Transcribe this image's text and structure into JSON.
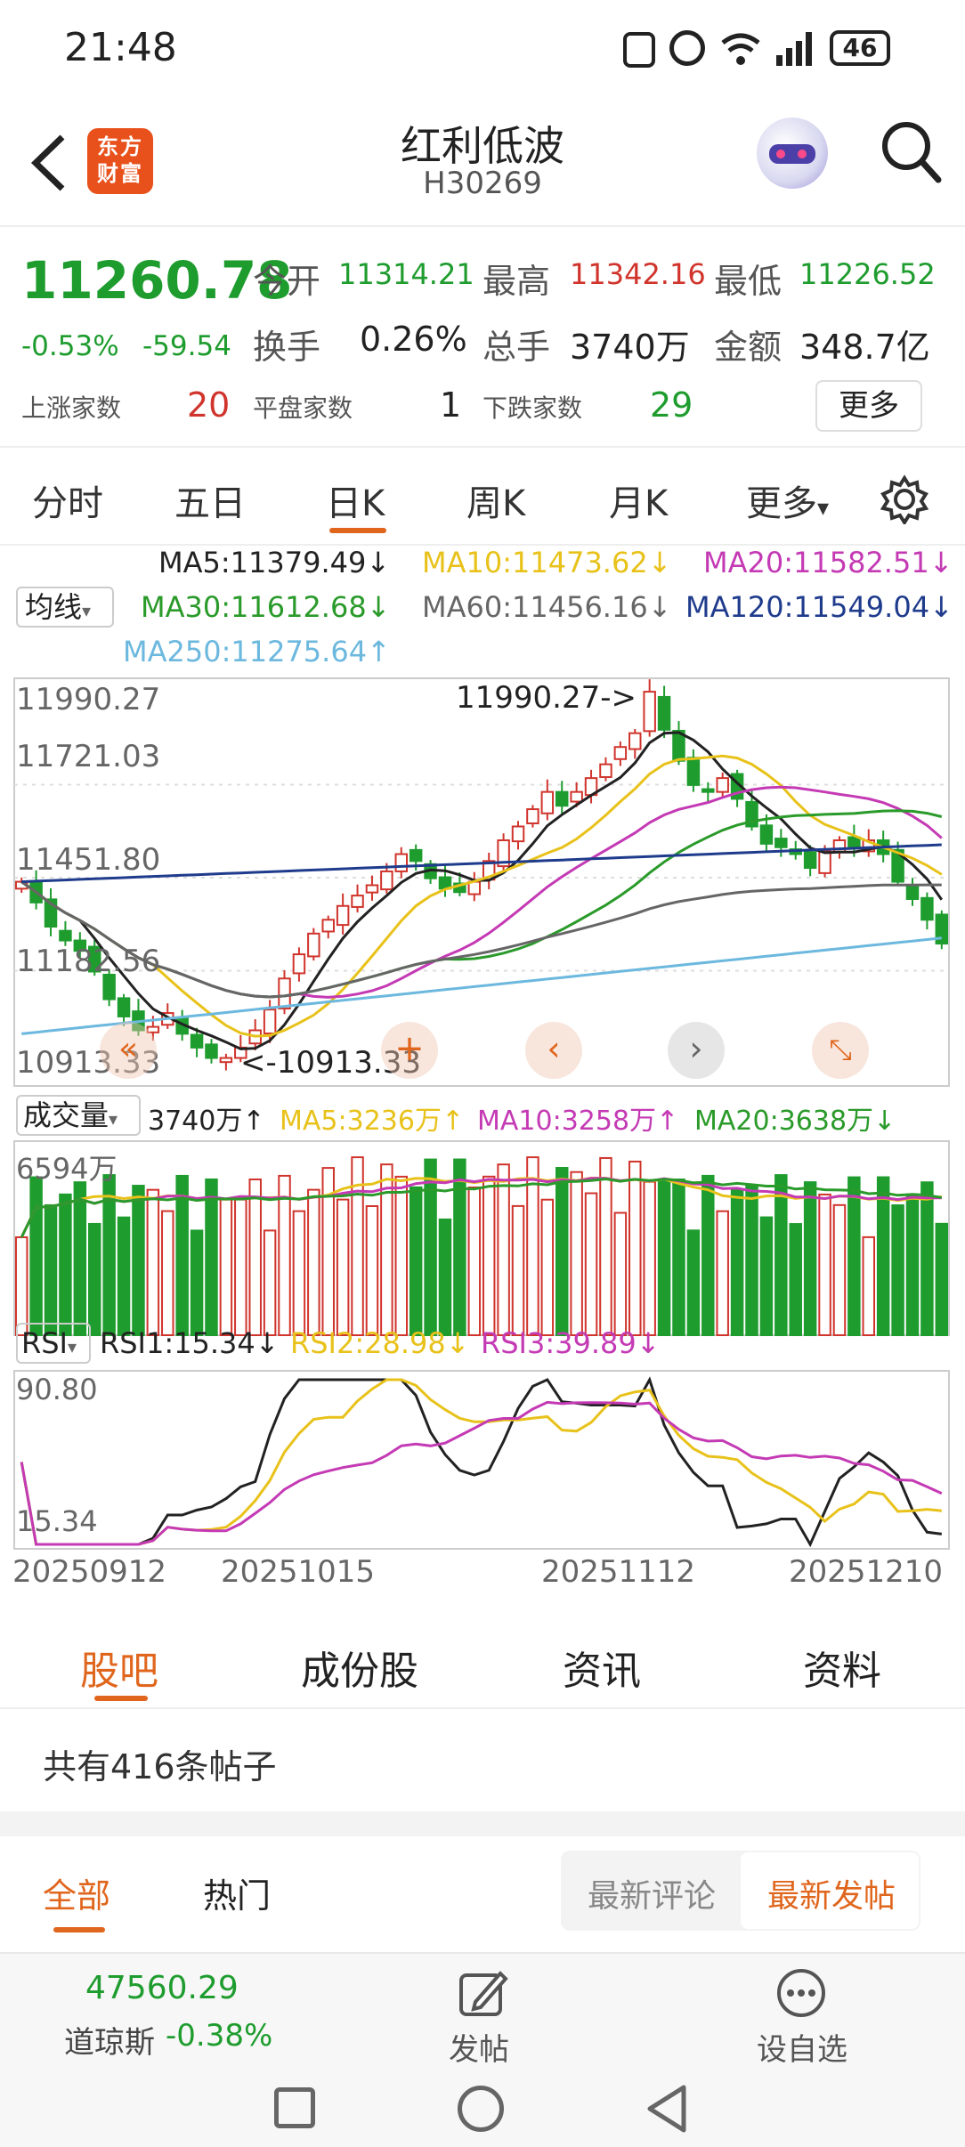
{
  "status": {
    "time": "21:48",
    "battery": "46"
  },
  "header": {
    "logo_text": "东方财富",
    "title": "红利低波",
    "code": "H30269"
  },
  "quote": {
    "price": "11260.78",
    "change_pct": "-0.53%",
    "change": "-59.54",
    "open_label": "今开",
    "open": "11314.21",
    "high_label": "最高",
    "high": "11342.16",
    "low_label": "最低",
    "low": "11226.52",
    "turnover_label": "换手",
    "turnover": "0.26%",
    "volume_label": "总手",
    "volume": "3740万",
    "amount_label": "金额",
    "amount": "348.7亿",
    "up_label": "上涨家数",
    "up": "20",
    "flat_label": "平盘家数",
    "flat": "1",
    "down_label": "下跌家数",
    "down": "29",
    "more_label": "更多"
  },
  "tabs": [
    "分时",
    "五日",
    "日K",
    "周K",
    "月K",
    "更多"
  ],
  "ma": {
    "selector": "均线",
    "ma5": "MA5:11379.49↓",
    "ma10": "MA10:11473.62↓",
    "ma20": "MA20:11582.51↓",
    "ma30": "MA30:11612.68↓",
    "ma60": "MA60:11456.16↓",
    "ma120": "MA120:11549.04↓",
    "ma250": "MA250:11275.64↑"
  },
  "colors": {
    "up": "#d0342c",
    "down": "#1e9c2e",
    "ma5": "#222222",
    "ma10": "#e8c21a",
    "ma20": "#c43ab4",
    "ma30": "#2a9a2a",
    "ma60": "#666666",
    "ma120": "#1f3b8c",
    "ma250": "#6cb8de",
    "accent": "#e0661d"
  },
  "chart_data": [
    {
      "type": "candlestick",
      "y_ticks": [
        "11990.27",
        "11721.03",
        "11451.80",
        "11182.56",
        "10913.33"
      ],
      "ylim": [
        10913.33,
        11990.27
      ],
      "max_label": "11990.27->",
      "min_label": "<-10913.33",
      "closes": [
        11440,
        11380,
        11310,
        11270,
        11240,
        11180,
        11100,
        11050,
        11010,
        11020,
        11060,
        11000,
        10960,
        10930,
        10930,
        10960,
        11010,
        11070,
        11160,
        11230,
        11290,
        11330,
        11370,
        11400,
        11430,
        11470,
        11520,
        11500,
        11450,
        11420,
        11410,
        11440,
        11500,
        11560,
        11600,
        11650,
        11700,
        11660,
        11700,
        11740,
        11780,
        11830,
        11870,
        11990,
        11880,
        11790,
        11720,
        11700,
        11740,
        11680,
        11600,
        11550,
        11540,
        11520,
        11480,
        11530,
        11560,
        11540,
        11560,
        11520,
        11440,
        11390,
        11330,
        11261
      ]
    },
    {
      "type": "bar",
      "label": "成交量",
      "current": "3740万↑",
      "ma5": "MA5:3236万↑",
      "ma10": "MA10:3258万↑",
      "ma20": "MA20:3638万↓",
      "top_label": "6594万"
    },
    {
      "type": "line",
      "label": "RSI",
      "rsi1": "RSI1:15.34↓",
      "rsi2": "RSI2:28.98↓",
      "rsi3": "RSI3:39.89↓",
      "y_ticks": [
        "90.80",
        "15.34"
      ],
      "x_ticks": [
        "20250912",
        "20251015",
        "20251112",
        "20251210"
      ]
    }
  ],
  "bottom_tabs": [
    "股吧",
    "成份股",
    "资讯",
    "资料"
  ],
  "posts": {
    "count_text": "共有416条帖子"
  },
  "sub_tabs": {
    "all": "全部",
    "hot": "热门",
    "latest_comment": "最新评论",
    "latest_post": "最新发帖"
  },
  "footer": {
    "index_value": "47560.29",
    "index_name": "道琼斯",
    "index_change": "-0.38%",
    "post_label": "发帖",
    "watch_label": "设自选"
  }
}
